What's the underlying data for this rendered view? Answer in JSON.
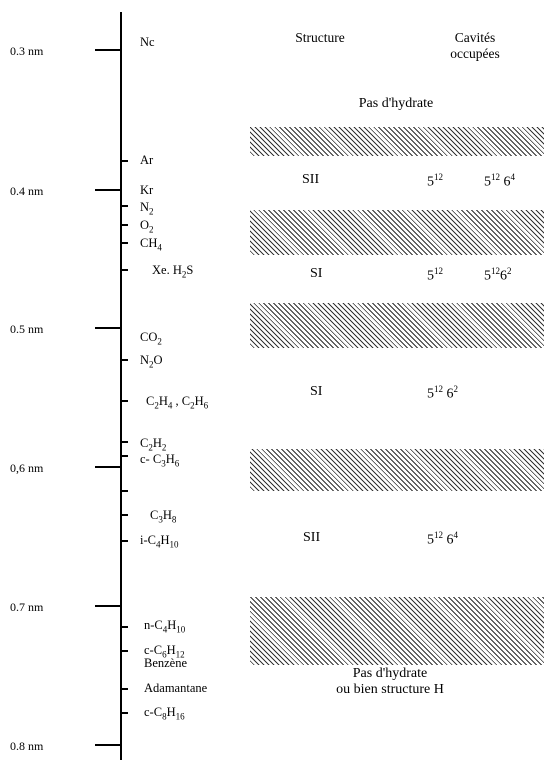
{
  "axis": {
    "labels": [
      "0.3 nm",
      "0.4 nm",
      "0.5 nm",
      "0,6 nm",
      "0.7 nm",
      "0.8 nm"
    ]
  },
  "molecules": {
    "ne": "Nc",
    "ar": "Ar",
    "kr": "Kr",
    "n2": "N",
    "o2": "O",
    "ch4": "CH",
    "xe_h2s": "Xe. H",
    "xe_h2s_tail": "S",
    "co2": "CO",
    "n2o_a": "N",
    "n2o_b": "O",
    "c2h4_c2h6": "C",
    "c2h2": "C",
    "c_c3h6": "c- C",
    "c3h8": "C",
    "i_c4h10": "i-C",
    "n_c4h10": "n-C",
    "c_c6h12": "c-C",
    "benzene": "Benzène",
    "adamantane": "Adamantane",
    "c_c8h16": "c-C"
  },
  "subscripts": {
    "two": "2",
    "three": "3",
    "four": "4",
    "six": "6",
    "eight": "8",
    "ten": "10",
    "twelve": "12",
    "sixteen": "16"
  },
  "headers": {
    "structure": "Structure",
    "cavities_line1": "Cavités",
    "cavities_line2": "occupées"
  },
  "notes": {
    "no_hydrate_top": "Pas d'hydrate",
    "no_hydrate_bottom_line1": "Pas d'hydrate",
    "no_hydrate_bottom_line2": "ou bien structure H"
  },
  "rows": [
    {
      "structure": "SII",
      "cav1_base": "5",
      "cav1_exp": "12",
      "cav2_base": "5",
      "cav2_exp": "12",
      "cav2_b": "6",
      "cav2_b_exp": "4"
    },
    {
      "structure": "SI",
      "cav1_base": "5",
      "cav1_exp": "12",
      "cav2_base": "5",
      "cav2_exp": "12",
      "cav2_b": "6",
      "cav2_b_exp": "2"
    },
    {
      "structure": "SI",
      "cav2_base": "5",
      "cav2_exp": "12",
      "cav2_b": "6",
      "cav2_b_exp": "2"
    },
    {
      "structure": "SII",
      "cav2_base": "5",
      "cav2_exp": "12",
      "cav2_b": "6",
      "cav2_b_exp": "4"
    }
  ]
}
